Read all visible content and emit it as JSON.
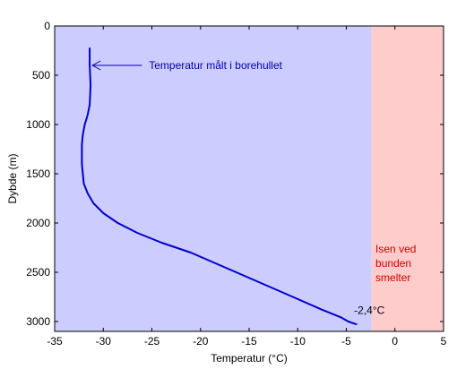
{
  "chart_data": {
    "type": "line",
    "xlabel": "Temperatur (°C)",
    "ylabel": "Dybde (m)",
    "xlim": [
      -35,
      5
    ],
    "ylim": [
      0,
      3100
    ],
    "y_inverted": true,
    "x_ticks": [
      -35,
      -30,
      -25,
      -20,
      -15,
      -10,
      -5,
      0,
      5
    ],
    "x_tick_labels": [
      "-35",
      "-30",
      "-25",
      "-20",
      "-15",
      "-10",
      "-5",
      "0",
      "5"
    ],
    "y_ticks": [
      0,
      500,
      1000,
      1500,
      2000,
      2500,
      3000
    ],
    "y_tick_labels": [
      "0",
      "500",
      "1000",
      "1500",
      "2000",
      "2500",
      "3000"
    ],
    "grid": false,
    "regions": [
      {
        "x_from": -35,
        "x_to": -2.4,
        "color": "#ccccff"
      },
      {
        "x_from": -2.4,
        "x_to": 5,
        "color": "#ffcccc"
      }
    ],
    "series": [
      {
        "color": "#0000cc",
        "x": [
          -31.4,
          -31.4,
          -31.3,
          -31.4,
          -31.6,
          -31.9,
          -32.1,
          -32.2,
          -32.2,
          -32.0,
          -31.6,
          -31.0,
          -30.0,
          -28.5,
          -26.5,
          -24.0,
          -21.0,
          -17.5,
          -14.0,
          -10.5,
          -7.5,
          -5.5,
          -4.8,
          -3.9
        ],
        "y": [
          220,
          400,
          600,
          800,
          900,
          1000,
          1100,
          1200,
          1400,
          1600,
          1700,
          1800,
          1900,
          2000,
          2100,
          2200,
          2300,
          2450,
          2600,
          2750,
          2880,
          2960,
          3000,
          3030
        ]
      }
    ],
    "annotations": [
      {
        "text": "Temperatur målt i borehullet",
        "color": "#0000aa",
        "x": -25.3,
        "y": 400,
        "arrow_to": [
          -31.2,
          400
        ]
      },
      {
        "text": "-2,4°C",
        "color": "#000000",
        "x": -4.2,
        "y": 2960
      },
      {
        "text_lines": [
          "Isen ved",
          "bunden",
          "smelter"
        ],
        "color": "#cc0000",
        "x": -2.0,
        "y": 2300
      }
    ]
  }
}
